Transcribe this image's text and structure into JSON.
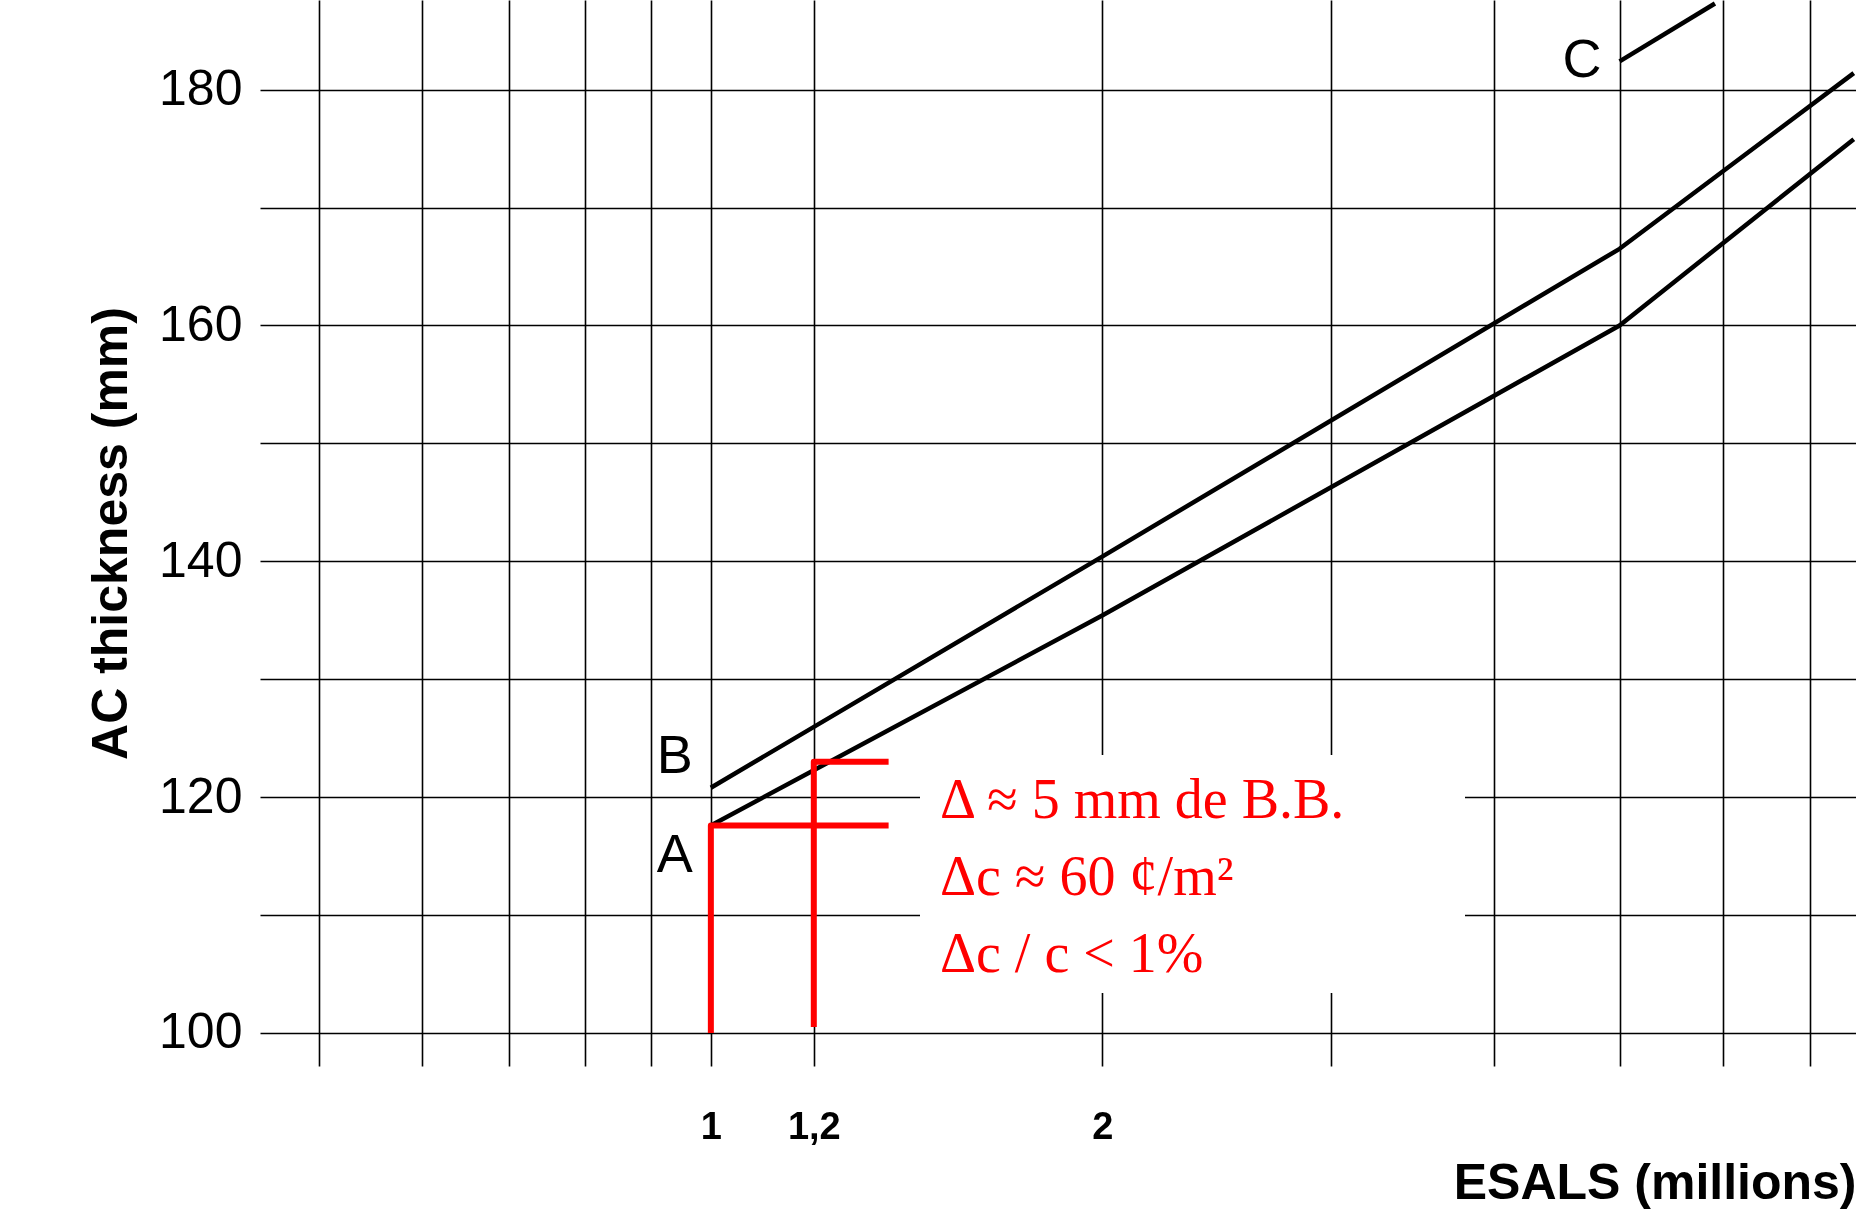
{
  "chart_data": {
    "type": "line",
    "xlabel": "ESALS (millions)",
    "ylabel": "AC thickness (mm)",
    "log": "x",
    "xlim": [
      0.45,
      7.6
    ],
    "ylim": [
      97.2,
      187.6
    ],
    "xticks": [
      {
        "value": 0.5,
        "label": null
      },
      {
        "value": 0.6,
        "label": null
      },
      {
        "value": 0.7,
        "label": null
      },
      {
        "value": 0.8,
        "label": null
      },
      {
        "value": 0.9,
        "label": null
      },
      1,
      {
        "value": 1.2,
        "label": "1,2"
      },
      2,
      {
        "value": 3,
        "label": null
      },
      {
        "value": 4,
        "label": null
      },
      {
        "value": 5,
        "label": null
      },
      {
        "value": 6,
        "label": null
      },
      {
        "value": 7,
        "label": null
      }
    ],
    "yticks": [
      100,
      {
        "value": 110,
        "label": null
      },
      120,
      {
        "value": 130,
        "label": null
      },
      140,
      {
        "value": 150,
        "label": null
      },
      160,
      {
        "value": 170,
        "label": null
      },
      180
    ],
    "grid": true,
    "series": [
      {
        "name": "A",
        "color": "#000000",
        "x": [
          1,
          2,
          5,
          7.57
        ],
        "values": [
          117.6,
          135.4,
          160,
          175.8
        ]
      },
      {
        "name": "B",
        "color": "#000000",
        "x": [
          1,
          2,
          5,
          7.57
        ],
        "values": [
          120.8,
          140.4,
          166.5,
          181.4
        ]
      },
      {
        "name": "C",
        "color": "#000000",
        "x": [
          5,
          5.92
        ],
        "values": [
          182.4,
          187.3
        ]
      },
      {
        "color": "#ff0000",
        "x": [
          1,
          1,
          1.37
        ],
        "values": [
          100,
          117.6,
          117.6
        ]
      },
      {
        "color": "#ff0000",
        "x": [
          1.2,
          1.2,
          1.37
        ],
        "values": [
          100.5,
          123,
          123
        ]
      }
    ],
    "annotations": [
      "Δ ≈ 5 mm de B.B.",
      "Δc ≈ 60 ¢/m²",
      "Δc / c < 1%"
    ]
  }
}
